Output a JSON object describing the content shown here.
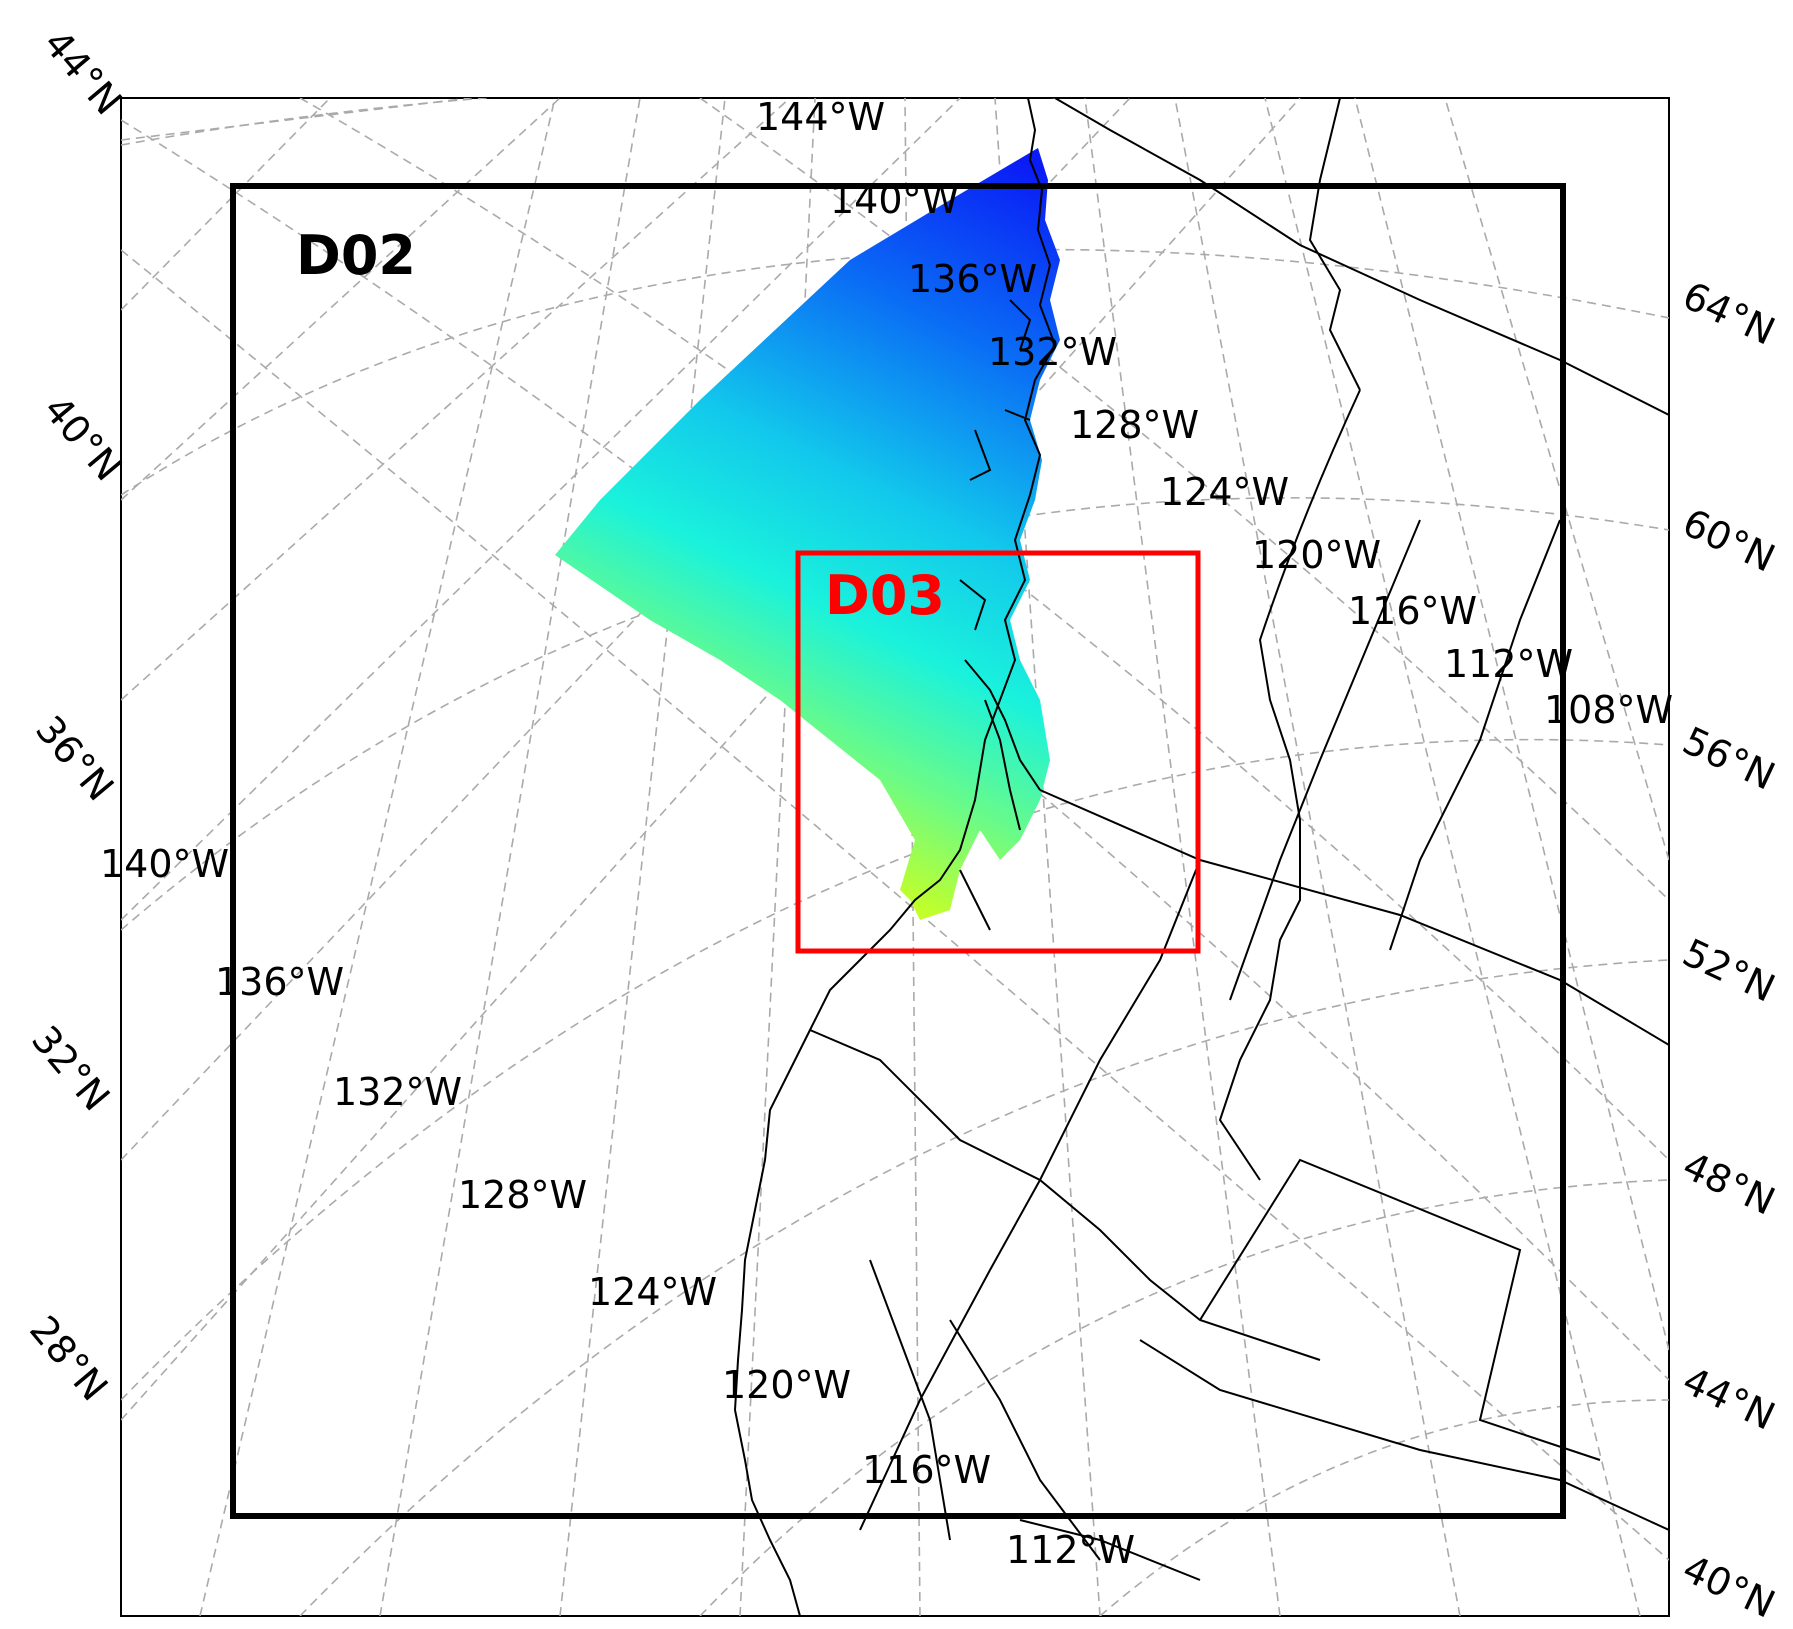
{
  "map": {
    "colors": {
      "background": "#ffffff",
      "graticule": "#aaaaaa",
      "coastline": "#000000",
      "outer_domain": "#000000",
      "inner_domain": "#ff0000",
      "field_low": "#0a1cf5",
      "field_mid": "#1af2dc",
      "field_high": "#c2ff2a"
    },
    "domains": {
      "d02": {
        "label": "D02"
      },
      "d03": {
        "label": "D03"
      }
    },
    "lat_labels_left": [
      "44°N",
      "40°N",
      "36°N",
      "32°N",
      "28°N"
    ],
    "lat_labels_right": [
      "64°N",
      "60°N",
      "56°N",
      "52°N",
      "48°N",
      "44°N",
      "40°N"
    ],
    "lon_labels_top": [
      "144°W",
      "140°W",
      "136°W",
      "132°W",
      "128°W",
      "124°W",
      "120°W",
      "116°W",
      "112°W",
      "108°W"
    ],
    "lon_labels_bottom": [
      "140°W",
      "136°W",
      "132°W",
      "128°W",
      "124°W",
      "120°W",
      "116°W",
      "112°W"
    ]
  }
}
